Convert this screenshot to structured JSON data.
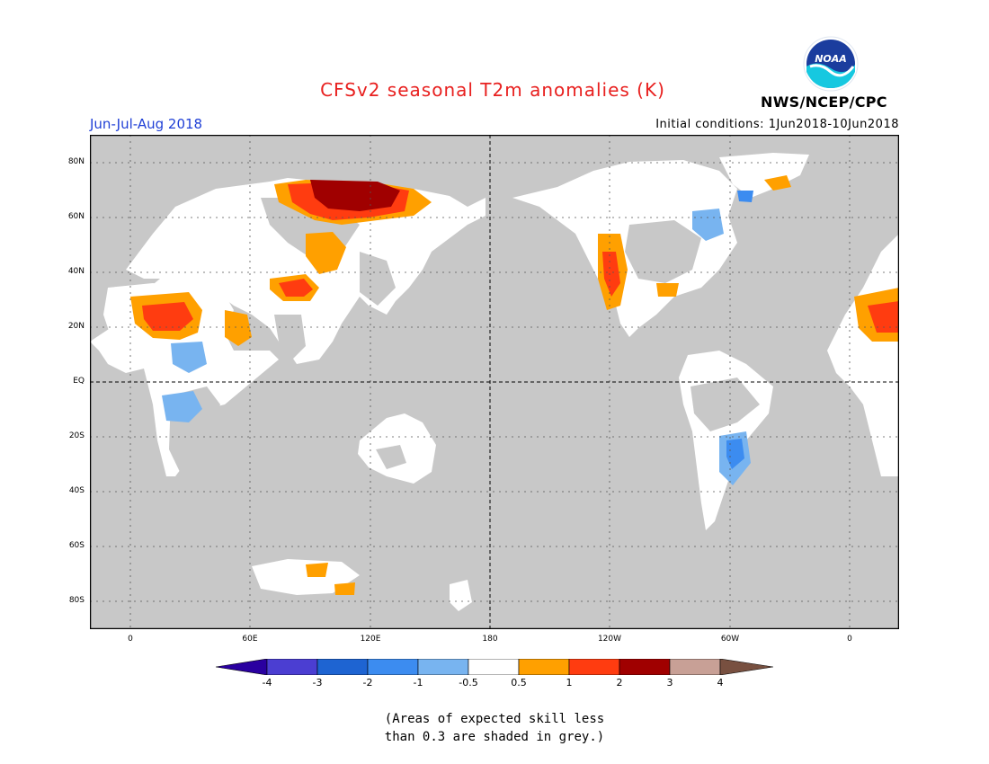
{
  "header": {
    "title": "CFSv2 seasonal T2m anomalies (K)",
    "season": "Jun-Jul-Aug 2018",
    "initial_conditions": "Initial conditions: 1Jun2018-10Jun2018",
    "agency": "NWS/NCEP/CPC",
    "logo_text": "NOAA"
  },
  "map": {
    "lat_labels": [
      "80N",
      "60N",
      "40N",
      "20N",
      "EQ",
      "20S",
      "40S",
      "60S",
      "80S"
    ],
    "lon_labels": [
      "0",
      "60E",
      "120E",
      "180",
      "120W",
      "60W",
      "0"
    ],
    "colors": {
      "grey_mask": "#c8c8c8",
      "near_zero": "#ffffff",
      "warm_05_1": "#ffa000",
      "warm_1_2": "#ff3c10",
      "warm_2_3": "#a00000",
      "cool_05_1": "#78b4f0",
      "cool_1_2": "#3c8cf0"
    }
  },
  "colorbar": {
    "labels": [
      "-4",
      "-3",
      "-2",
      "-1",
      "-0.5",
      "0.5",
      "1",
      "2",
      "3",
      "4"
    ],
    "colors": [
      "#2a00a0",
      "#4b3ed2",
      "#1e64d2",
      "#3c8cf0",
      "#78b4f0",
      "#ffffff",
      "#ffa000",
      "#ff3c10",
      "#a00000",
      "#c8a096",
      "#785040"
    ]
  },
  "note": {
    "line1": "(Areas of expected skill less",
    "line2": "than 0.3 are shaded in grey.)"
  }
}
